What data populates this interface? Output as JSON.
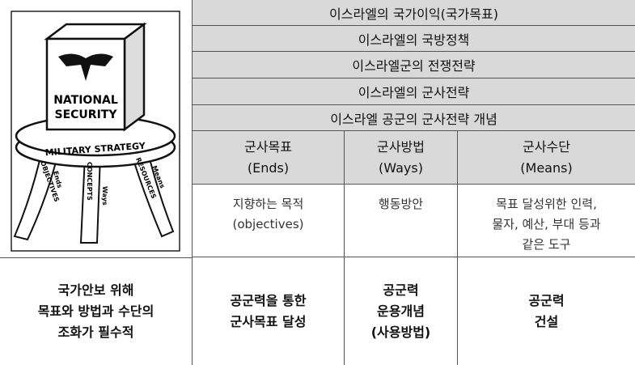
{
  "illustration": {
    "box_label": [
      "NATIONAL",
      "SECURITY"
    ],
    "seat_label": "MILITARY STRATEGY",
    "legs": [
      {
        "label": "OBJECTIVES",
        "tag": "Ends"
      },
      {
        "label": "CONCEPTS",
        "tag": "Ways"
      },
      {
        "label": "RESOURCES",
        "tag": "Means"
      }
    ]
  },
  "caption": [
    "국가안보 위해",
    "목표와 방법과 수단의",
    "조화가 필수적"
  ],
  "table": {
    "banner_rows": [
      "이스라엘의 국가이익(국가목표)",
      "이스라엘의 국방정책",
      "이스라엘군의 전쟁전략",
      "이스라엘의 군사전략",
      "이스라엘 공군의 군사전략 개념"
    ],
    "columns": [
      {
        "heading": [
          "군사목표",
          "(Ends)"
        ],
        "description": [
          "지향하는 목적",
          "(objectives)"
        ],
        "airpower": [
          "공군력을 통한",
          "군사목표 달성"
        ]
      },
      {
        "heading": [
          "군사방법",
          "(Ways)"
        ],
        "description": [
          "행동방안"
        ],
        "airpower": [
          "공군력",
          "운용개념",
          "(사용방법)"
        ]
      },
      {
        "heading": [
          "군사수단",
          "(Means)"
        ],
        "description": [
          "목표 달성위한 인력,",
          "물자, 예산, 부대 등과",
          "같은 도구"
        ],
        "airpower": [
          "공군력",
          "건설"
        ]
      }
    ]
  }
}
